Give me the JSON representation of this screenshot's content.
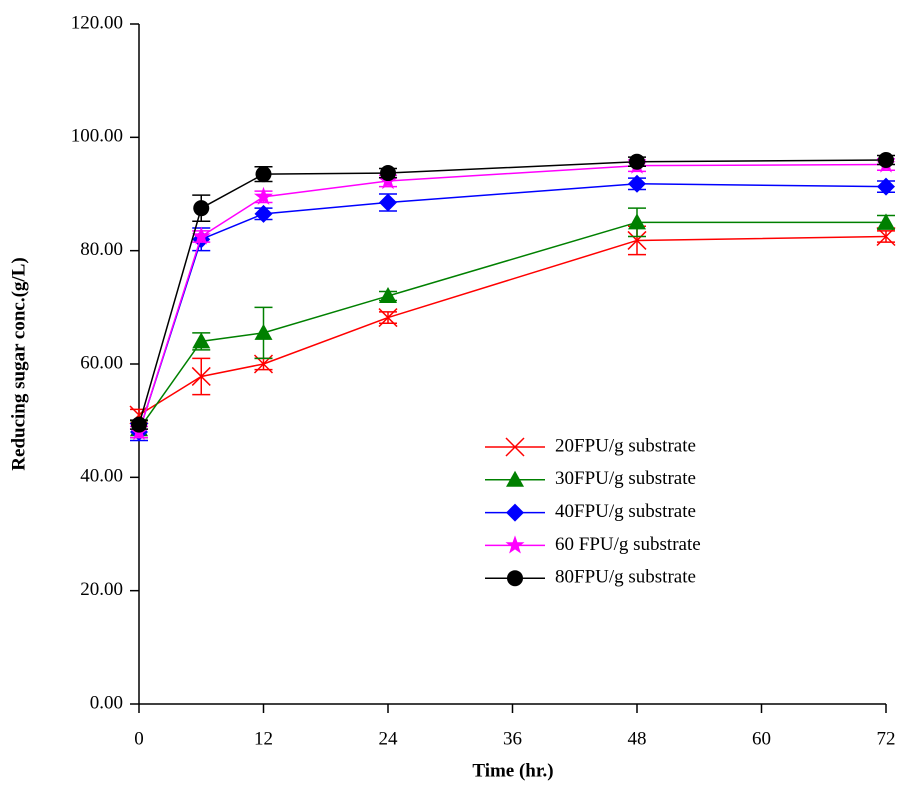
{
  "chart_data": {
    "type": "line",
    "x_label": "Time (hr.)",
    "y_label": "Reducing sugar conc.(g/L)",
    "x": [
      0,
      6,
      12,
      24,
      48,
      72
    ],
    "xlim": [
      0,
      72
    ],
    "xticks": [
      0,
      12,
      24,
      36,
      48,
      60,
      72
    ],
    "ylim": [
      0,
      120
    ],
    "yticks": [
      {
        "value": 0,
        "label": "0.00"
      },
      {
        "value": 20,
        "label": "20.00"
      },
      {
        "value": 40,
        "label": "40.00"
      },
      {
        "value": 60,
        "label": "60.00"
      },
      {
        "value": 80,
        "label": "80.00"
      },
      {
        "value": 100,
        "label": "100.00"
      },
      {
        "value": 120,
        "label": "120.00"
      }
    ],
    "legend": "lower right",
    "series": [
      {
        "name": "20FPU/g substrate",
        "color": "#ff0000",
        "marker": "x",
        "values": [
          51,
          57.8,
          60,
          68.2,
          81.8,
          82.5
        ],
        "errors": [
          1,
          3.2,
          1,
          1,
          2.5,
          1
        ]
      },
      {
        "name": "30FPU/g substrate",
        "color": "#008000",
        "marker": "triangle",
        "values": [
          48.5,
          64,
          65.5,
          72,
          85,
          85
        ],
        "errors": [
          1.5,
          1.5,
          4.5,
          0.8,
          2.5,
          1.2
        ]
      },
      {
        "name": "40FPU/g substrate",
        "color": "#0000ff",
        "marker": "diamond",
        "values": [
          48,
          82,
          86.5,
          88.5,
          91.8,
          91.3
        ],
        "errors": [
          1.5,
          2,
          1,
          1.5,
          1,
          1
        ]
      },
      {
        "name": "60 FPU/g substrate",
        "color": "#ff00ff",
        "marker": "star",
        "values": [
          48,
          82.5,
          89.5,
          92.3,
          95,
          95.2
        ],
        "errors": [
          1,
          1,
          1,
          1,
          1,
          1
        ]
      },
      {
        "name": "80FPU/g substrate",
        "color": "#000000",
        "marker": "circle",
        "values": [
          49.3,
          87.5,
          93.5,
          93.7,
          95.7,
          96
        ],
        "errors": [
          0.8,
          2.3,
          1.3,
          0.8,
          0.8,
          0.8
        ]
      }
    ]
  }
}
